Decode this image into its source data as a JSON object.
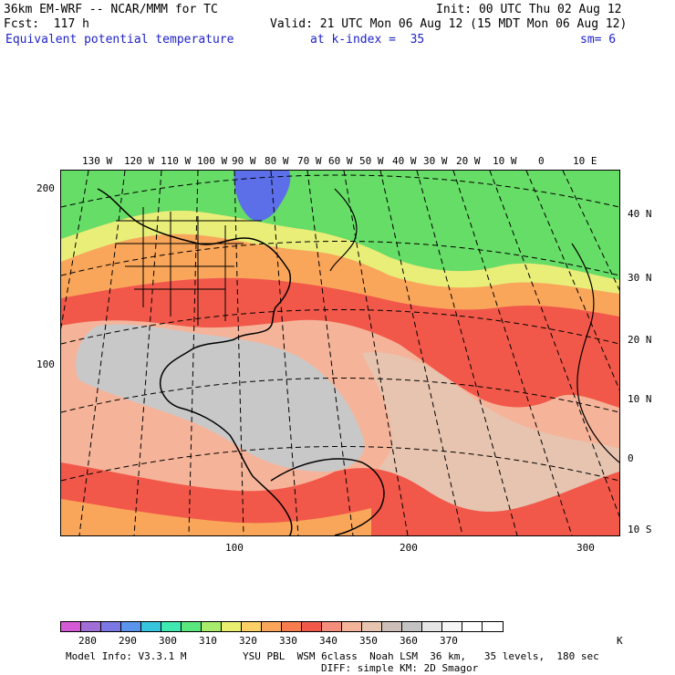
{
  "header": {
    "line1_left": "36km EM-WRF -- NCAR/MMM for TC",
    "line1_right": "Init: 00 UTC Thu 02 Aug 12",
    "line2_left": "Fcst:  117 h",
    "line2_right": "Valid: 21 UTC Mon 06 Aug 12 (15 MDT Mon 06 Aug 12)",
    "field_name": "Equivalent potential temperature",
    "level": "at k-index =  35",
    "smoothing": "sm= 6"
  },
  "map": {
    "longitude_labels": [
      "130 W",
      "120 W",
      "110 W",
      "100 W",
      "90 W",
      "80 W",
      "70 W",
      "60 W",
      "50 W",
      "40 W",
      "30 W",
      "20 W",
      "10 W",
      "0",
      "10 E"
    ],
    "latitude_labels": [
      "40 N",
      "30 N",
      "20 N",
      "10 N",
      "0",
      "10 S"
    ],
    "left_axis_labels": [
      "200",
      "100"
    ],
    "bottom_axis_labels": [
      "100",
      "200",
      "300"
    ],
    "colors": {
      "cold_blue": "#5c6fe8",
      "green": "#66dd66",
      "yellow": "#e8ee77",
      "orange": "#f9a65a",
      "red": "#f2584a",
      "salmon": "#f5b49a",
      "tan": "#e6c4b0",
      "gray": "#c8c8c8"
    }
  },
  "colorbar": {
    "colors": [
      "#d55ad5",
      "#a06ed6",
      "#7b78e6",
      "#5a94ec",
      "#35c6de",
      "#3ee8b0",
      "#5ae87e",
      "#a7ec6a",
      "#e9ef6f",
      "#fbd065",
      "#f9a65a",
      "#f77d4f",
      "#f2584a",
      "#f58d7c",
      "#f5b49a",
      "#e6c4b0",
      "#cdbfb8",
      "#c3c3c3",
      "#e5e5e5",
      "#f6f6f6",
      "#ffffff",
      "#ffffff"
    ],
    "labels": [
      "280",
      "290",
      "300",
      "310",
      "320",
      "330",
      "340",
      "350",
      "360",
      "370",
      "K"
    ]
  },
  "footer": {
    "model_info": "Model Info: V3.3.1 M",
    "physics_line1": "YSU PBL  WSM 6class  Noah LSM  36 km,   35 levels,  180 sec",
    "physics_line2": "DIFF: simple KM: 2D Smagor"
  }
}
